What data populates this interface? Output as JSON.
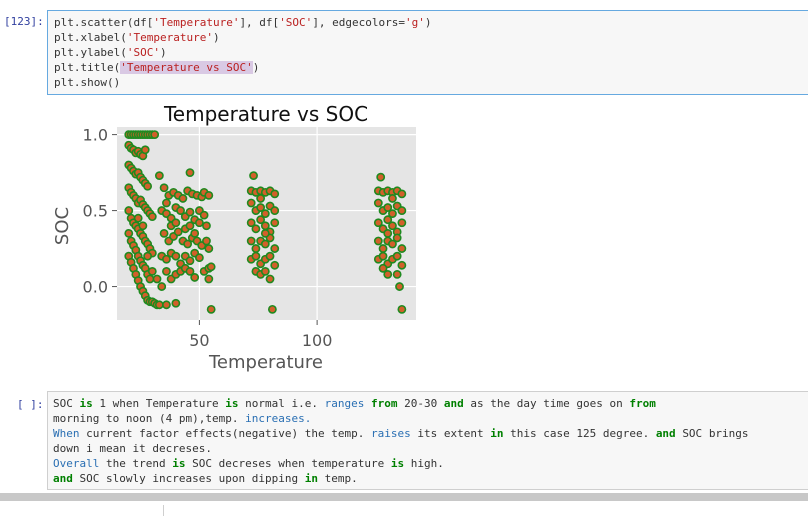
{
  "code_cell": {
    "prompt": "[123]:",
    "lines": [
      "plt.scatter(df['Temperature'], df['SOC'], edgecolors='g')",
      "plt.xlabel('Temperature')",
      "plt.ylabel('SOC')",
      "plt.title('Temperature vs SOC')",
      "plt.show()"
    ]
  },
  "chart_data": {
    "type": "scatter",
    "title": "Temperature vs SOC",
    "xlabel": "Temperature",
    "ylabel": "SOC",
    "xlim": [
      15,
      142
    ],
    "ylim": [
      -0.22,
      1.05
    ],
    "xticks": [
      50,
      100
    ],
    "yticks": [
      0.0,
      0.5,
      1.0
    ],
    "xtick_labels": [
      "50",
      "100"
    ],
    "ytick_labels": [
      "0.0",
      "0.5",
      "1.0"
    ],
    "grid": true,
    "style": "ggplot",
    "colors": {
      "face": "#d2602a",
      "edge": "#1f8a1f",
      "background": "#e5e5e5",
      "grid": "#ffffff"
    },
    "series": [
      {
        "points": [
          [
            20,
            1.0
          ],
          [
            21,
            1.0
          ],
          [
            22,
            1.0
          ],
          [
            23,
            1.0
          ],
          [
            24,
            1.0
          ],
          [
            25,
            1.0
          ],
          [
            26,
            1.0
          ],
          [
            27,
            1.0
          ],
          [
            28,
            1.0
          ],
          [
            29,
            1.0
          ],
          [
            30,
            1.0
          ],
          [
            31,
            1.0
          ],
          [
            20,
            0.93
          ],
          [
            21,
            0.91
          ],
          [
            22,
            0.9
          ],
          [
            23,
            0.88
          ],
          [
            24,
            0.89
          ],
          [
            25,
            0.87
          ],
          [
            26,
            0.86
          ],
          [
            27,
            0.9
          ],
          [
            20,
            0.8
          ],
          [
            21,
            0.78
          ],
          [
            22,
            0.76
          ],
          [
            23,
            0.74
          ],
          [
            24,
            0.75
          ],
          [
            25,
            0.72
          ],
          [
            26,
            0.7
          ],
          [
            27,
            0.68
          ],
          [
            28,
            0.66
          ],
          [
            20,
            0.65
          ],
          [
            21,
            0.62
          ],
          [
            22,
            0.6
          ],
          [
            23,
            0.58
          ],
          [
            24,
            0.55
          ],
          [
            25,
            0.57
          ],
          [
            26,
            0.54
          ],
          [
            27,
            0.52
          ],
          [
            28,
            0.5
          ],
          [
            29,
            0.48
          ],
          [
            30,
            0.46
          ],
          [
            20,
            0.5
          ],
          [
            21,
            0.45
          ],
          [
            22,
            0.42
          ],
          [
            23,
            0.4
          ],
          [
            24,
            0.38
          ],
          [
            25,
            0.35
          ],
          [
            26,
            0.33
          ],
          [
            27,
            0.3
          ],
          [
            28,
            0.28
          ],
          [
            29,
            0.25
          ],
          [
            30,
            0.22
          ],
          [
            20,
            0.35
          ],
          [
            21,
            0.3
          ],
          [
            22,
            0.27
          ],
          [
            23,
            0.24
          ],
          [
            24,
            0.2
          ],
          [
            25,
            0.17
          ],
          [
            26,
            0.14
          ],
          [
            27,
            0.12
          ],
          [
            28,
            0.08
          ],
          [
            29,
            0.05
          ],
          [
            20,
            0.2
          ],
          [
            21,
            0.16
          ],
          [
            22,
            0.12
          ],
          [
            23,
            0.08
          ],
          [
            24,
            0.04
          ],
          [
            25,
            0.0
          ],
          [
            26,
            -0.03
          ],
          [
            27,
            -0.06
          ],
          [
            28,
            -0.09
          ],
          [
            29,
            -0.1
          ],
          [
            30,
            -0.1
          ],
          [
            31,
            -0.11
          ],
          [
            32,
            -0.12
          ],
          [
            33,
            -0.12
          ],
          [
            24,
            0.45
          ],
          [
            26,
            0.4
          ],
          [
            28,
            0.2
          ],
          [
            30,
            0.1
          ],
          [
            32,
            0.05
          ],
          [
            34,
            0.0
          ],
          [
            33,
            0.73
          ],
          [
            35,
            0.65
          ],
          [
            37,
            0.6
          ],
          [
            39,
            0.62
          ],
          [
            41,
            0.6
          ],
          [
            43,
            0.58
          ],
          [
            45,
            0.63
          ],
          [
            47,
            0.61
          ],
          [
            49,
            0.6
          ],
          [
            51,
            0.59
          ],
          [
            52,
            0.62
          ],
          [
            54,
            0.6
          ],
          [
            34,
            0.5
          ],
          [
            36,
            0.48
          ],
          [
            38,
            0.45
          ],
          [
            40,
            0.52
          ],
          [
            42,
            0.5
          ],
          [
            44,
            0.46
          ],
          [
            46,
            0.49
          ],
          [
            48,
            0.44
          ],
          [
            50,
            0.5
          ],
          [
            52,
            0.47
          ],
          [
            35,
            0.35
          ],
          [
            37,
            0.3
          ],
          [
            39,
            0.33
          ],
          [
            41,
            0.36
          ],
          [
            43,
            0.3
          ],
          [
            45,
            0.28
          ],
          [
            47,
            0.32
          ],
          [
            49,
            0.3
          ],
          [
            51,
            0.27
          ],
          [
            53,
            0.3
          ],
          [
            34,
            0.2
          ],
          [
            36,
            0.18
          ],
          [
            38,
            0.22
          ],
          [
            40,
            0.2
          ],
          [
            42,
            0.15
          ],
          [
            44,
            0.2
          ],
          [
            46,
            0.17
          ],
          [
            48,
            0.22
          ],
          [
            50,
            0.19
          ],
          [
            36,
            0.1
          ],
          [
            38,
            0.05
          ],
          [
            40,
            0.08
          ],
          [
            42,
            0.1
          ],
          [
            44,
            0.12
          ],
          [
            46,
            0.1
          ],
          [
            48,
            0.06
          ],
          [
            52,
            0.1
          ],
          [
            54,
            0.12
          ],
          [
            36,
            0.55
          ],
          [
            38,
            0.4
          ],
          [
            40,
            0.42
          ],
          [
            44,
            0.38
          ],
          [
            46,
            0.4
          ],
          [
            48,
            0.35
          ],
          [
            50,
            0.42
          ],
          [
            53,
            0.4
          ],
          [
            54,
            0.25
          ],
          [
            40,
            -0.11
          ],
          [
            46,
            0.75
          ],
          [
            54,
            0.05
          ],
          [
            55,
            0.13
          ],
          [
            55,
            -0.15
          ],
          [
            36,
            -0.12
          ],
          [
            72,
            0.63
          ],
          [
            74,
            0.62
          ],
          [
            76,
            0.63
          ],
          [
            78,
            0.62
          ],
          [
            80,
            0.63
          ],
          [
            82,
            0.61
          ],
          [
            73,
            0.73
          ],
          [
            72,
            0.55
          ],
          [
            74,
            0.5
          ],
          [
            76,
            0.52
          ],
          [
            78,
            0.48
          ],
          [
            80,
            0.53
          ],
          [
            82,
            0.5
          ],
          [
            72,
            0.42
          ],
          [
            74,
            0.38
          ],
          [
            76,
            0.44
          ],
          [
            78,
            0.4
          ],
          [
            80,
            0.36
          ],
          [
            82,
            0.42
          ],
          [
            72,
            0.3
          ],
          [
            74,
            0.25
          ],
          [
            76,
            0.3
          ],
          [
            78,
            0.28
          ],
          [
            80,
            0.32
          ],
          [
            82,
            0.25
          ],
          [
            72,
            0.18
          ],
          [
            74,
            0.2
          ],
          [
            76,
            0.15
          ],
          [
            78,
            0.18
          ],
          [
            80,
            0.2
          ],
          [
            82,
            0.14
          ],
          [
            74,
            0.1
          ],
          [
            76,
            0.08
          ],
          [
            78,
            0.1
          ],
          [
            80,
            0.05
          ],
          [
            81,
            -0.15
          ],
          [
            78,
            0.35
          ],
          [
            76,
            0.58
          ],
          [
            126,
            0.63
          ],
          [
            128,
            0.62
          ],
          [
            130,
            0.63
          ],
          [
            132,
            0.62
          ],
          [
            134,
            0.63
          ],
          [
            136,
            0.61
          ],
          [
            127,
            0.72
          ],
          [
            126,
            0.55
          ],
          [
            128,
            0.5
          ],
          [
            130,
            0.52
          ],
          [
            132,
            0.48
          ],
          [
            134,
            0.53
          ],
          [
            136,
            0.5
          ],
          [
            126,
            0.42
          ],
          [
            128,
            0.38
          ],
          [
            130,
            0.44
          ],
          [
            132,
            0.4
          ],
          [
            134,
            0.36
          ],
          [
            136,
            0.42
          ],
          [
            126,
            0.3
          ],
          [
            128,
            0.25
          ],
          [
            130,
            0.3
          ],
          [
            132,
            0.28
          ],
          [
            134,
            0.32
          ],
          [
            136,
            0.25
          ],
          [
            126,
            0.18
          ],
          [
            128,
            0.2
          ],
          [
            130,
            0.15
          ],
          [
            132,
            0.18
          ],
          [
            134,
            0.2
          ],
          [
            136,
            0.14
          ],
          [
            128,
            0.12
          ],
          [
            130,
            0.08
          ],
          [
            134,
            0.08
          ],
          [
            135,
            0.0
          ],
          [
            136,
            -0.15
          ],
          [
            132,
            0.58
          ],
          [
            130,
            0.35
          ]
        ]
      }
    ]
  },
  "md_cell": {
    "prompt": "[ ]:",
    "lines": [
      "SOC is 1 when Temperature is normal i.e. ranges from 20-30 and as the day time goes on from",
      "morning to noon (4 pm),temp. increases.",
      "When current factor effects(negative) the temp. raises its extent in this case 125 degree. and SOC brings",
      "down i mean it decreses.",
      "Overall the trend is SOC decreses when temperature is high.",
      "and SOC slowly increases upon dipping in temp."
    ]
  }
}
